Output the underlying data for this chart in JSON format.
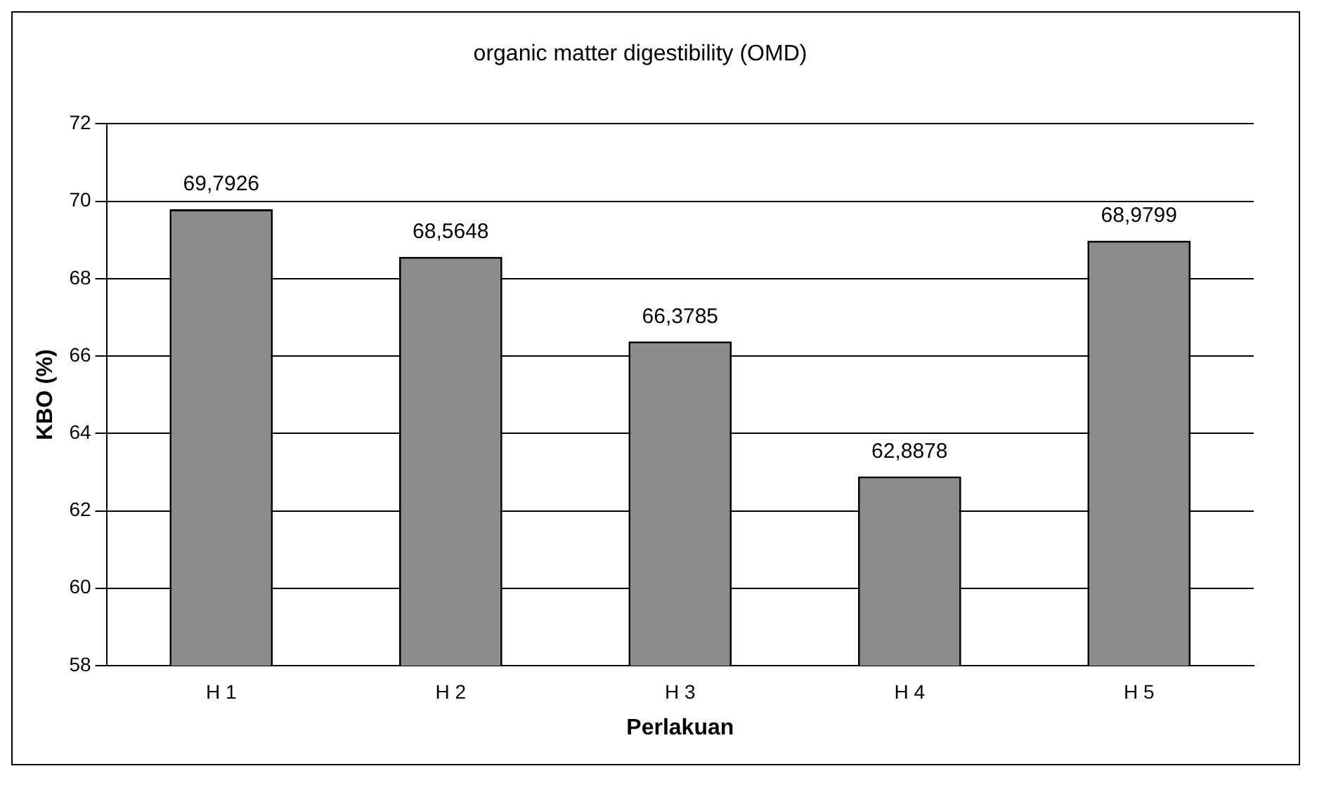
{
  "chart_data": {
    "type": "bar",
    "title": "organic matter digestibility (OMD)",
    "xlabel": "Perlakuan",
    "ylabel": "KBO (%)",
    "categories": [
      "H 1",
      "H 2",
      "H 3",
      "H 4",
      "H 5"
    ],
    "values": [
      69.7926,
      68.5648,
      66.3785,
      62.8878,
      68.9799
    ],
    "value_labels": [
      "69,7926",
      "68,5648",
      "66,3785",
      "62,8878",
      "68,9799"
    ],
    "color": "#8c8c8c",
    "ylim": [
      58,
      72
    ],
    "yticks": [
      58,
      60,
      62,
      64,
      66,
      68,
      70,
      72
    ],
    "grid": "y",
    "legend": false
  }
}
